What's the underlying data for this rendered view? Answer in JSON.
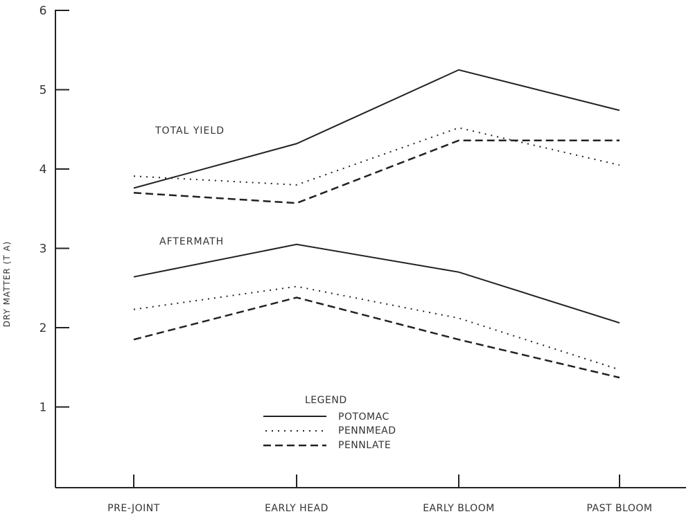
{
  "chart_data": {
    "type": "line",
    "ylabel": "DRY MATTER (T A)",
    "xlabel": "",
    "title": "",
    "categories": [
      "PRE-JOINT",
      "EARLY HEAD",
      "EARLY BLOOM",
      "PAST BLOOM"
    ],
    "y_ticks": [
      "1",
      "2",
      "3",
      "4",
      "5",
      "6"
    ],
    "ylim": [
      0,
      6
    ],
    "grid": false,
    "annotations": [
      "TOTAL YIELD",
      "AFTERMATH"
    ],
    "legend": {
      "title": "LEGEND",
      "position": "bottom-center",
      "entries": [
        {
          "label": "POTOMAC",
          "style": "solid"
        },
        {
          "label": "PENNMEAD",
          "style": "dotted"
        },
        {
          "label": "PENNLATE",
          "style": "dashed"
        }
      ]
    },
    "series": [
      {
        "group": "TOTAL YIELD",
        "variety": "POTOMAC",
        "style": "solid",
        "values": [
          3.76,
          4.32,
          5.25,
          4.74
        ]
      },
      {
        "group": "TOTAL YIELD",
        "variety": "PENNMEAD",
        "style": "dotted",
        "values": [
          3.91,
          3.8,
          4.52,
          4.05
        ]
      },
      {
        "group": "TOTAL YIELD",
        "variety": "PENNLATE",
        "style": "dashed",
        "values": [
          3.7,
          3.57,
          4.36,
          4.36
        ]
      },
      {
        "group": "AFTERMATH",
        "variety": "POTOMAC",
        "style": "solid",
        "values": [
          2.64,
          3.05,
          2.7,
          2.06
        ]
      },
      {
        "group": "AFTERMATH",
        "variety": "PENNMEAD",
        "style": "dotted",
        "values": [
          2.23,
          2.52,
          2.12,
          1.47
        ]
      },
      {
        "group": "AFTERMATH",
        "variety": "PENNLATE",
        "style": "dashed",
        "values": [
          1.85,
          2.38,
          1.85,
          1.37
        ]
      }
    ]
  }
}
